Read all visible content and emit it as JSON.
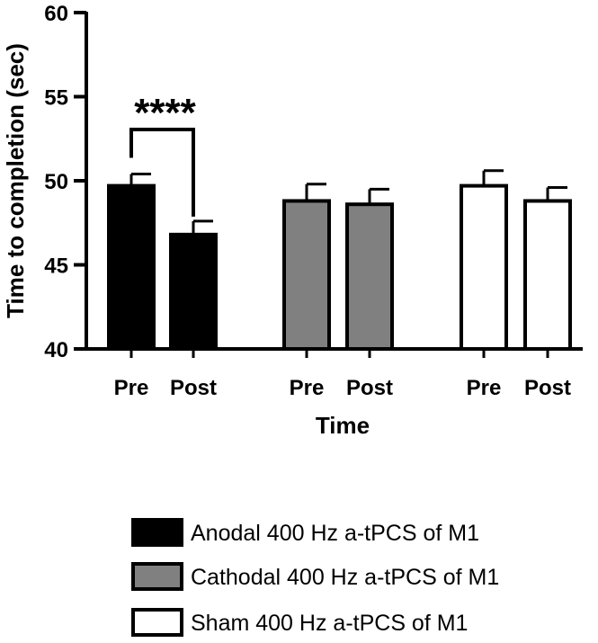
{
  "chart_data": {
    "type": "bar",
    "ylabel": "Time to completion (sec)",
    "xlabel": "Time",
    "ylim": [
      40,
      60
    ],
    "yticks": [
      40,
      45,
      50,
      55,
      60
    ],
    "groups": [
      {
        "name": "Anodal 400 Hz a-tPCS of M1",
        "fill": "#000000",
        "bars": [
          {
            "category": "Pre",
            "value": 49.7,
            "error": 0.7
          },
          {
            "category": "Post",
            "value": 46.8,
            "error": 0.8
          }
        ]
      },
      {
        "name": "Cathodal 400 Hz a-tPCS of M1",
        "fill": "#808080",
        "bars": [
          {
            "category": "Pre",
            "value": 48.8,
            "error": 1.0
          },
          {
            "category": "Post",
            "value": 48.6,
            "error": 0.9
          }
        ]
      },
      {
        "name": "Sham 400 Hz a-tPCS of M1",
        "fill": "#ffffff",
        "bars": [
          {
            "category": "Pre",
            "value": 49.7,
            "error": 0.9
          },
          {
            "category": "Post",
            "value": 48.8,
            "error": 0.8
          }
        ]
      }
    ],
    "annotations": [
      {
        "text": "****",
        "group": 0,
        "from_bar": 0,
        "to_bar": 1
      }
    ],
    "legend_position": "bottom",
    "grid": false
  }
}
